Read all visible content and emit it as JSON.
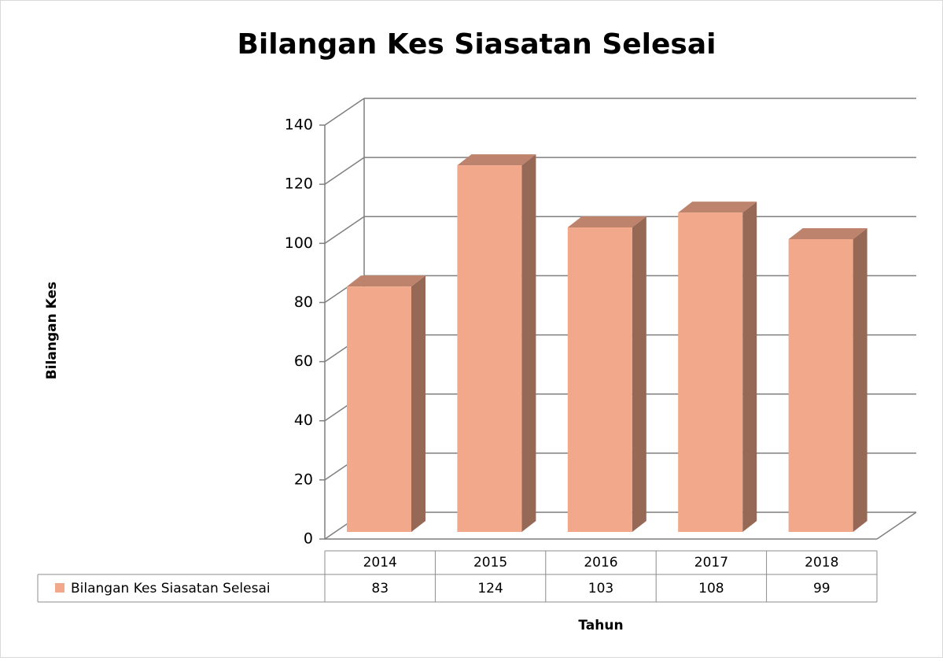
{
  "chart_data": {
    "type": "bar3d",
    "title": "Bilangan Kes Siasatan Selesai",
    "x_label": "Tahun",
    "y_label": "Bilangan Kes",
    "categories": [
      "2014",
      "2015",
      "2016",
      "2017",
      "2018"
    ],
    "series": [
      {
        "name": "Bilangan Kes Siasatan Selesai",
        "color": "#f2a88a",
        "values": [
          83,
          124,
          103,
          108,
          99
        ]
      }
    ],
    "ylim": [
      0,
      140
    ],
    "yticks": [
      0,
      20,
      40,
      60,
      80,
      100,
      120,
      140
    ],
    "grid": true
  }
}
